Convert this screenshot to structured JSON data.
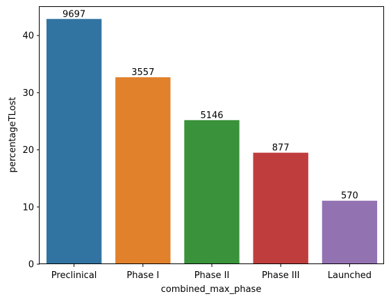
{
  "chart_data": {
    "type": "bar",
    "title": "",
    "xlabel": "combined_max_phase",
    "ylabel": "percentageTLost",
    "categories": [
      "Preclinical",
      "Phase I",
      "Phase II",
      "Phase III",
      "Launched"
    ],
    "values": [
      42.9,
      32.7,
      25.2,
      19.5,
      11.1
    ],
    "bar_labels": [
      "9697",
      "3557",
      "5146",
      "877",
      "570"
    ],
    "colors": [
      "#3274a1",
      "#e1812c",
      "#3a923a",
      "#c03d3e",
      "#9372b2"
    ],
    "ylim": [
      0,
      45
    ],
    "yticks": [
      0,
      10,
      20,
      30,
      40
    ],
    "grid": false,
    "legend": "none"
  }
}
